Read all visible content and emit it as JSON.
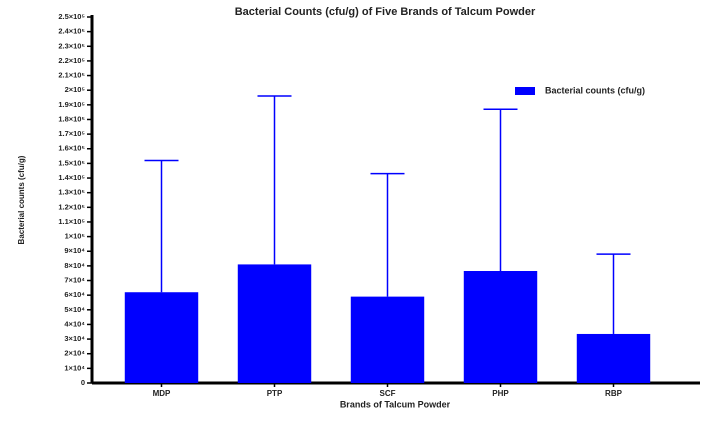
{
  "chart_data": {
    "type": "bar",
    "title": "Bacterial Counts (cfu/g) of Five Brands of Talcum Powder",
    "x_label": "Brands of  Talcum Powder",
    "y_label": "Bacterial counts (cfu/g)",
    "categories": [
      "MDP",
      "PTP",
      "SCF",
      "PHP",
      "RBP"
    ],
    "series": [
      {
        "name": "Bacterial counts (cfu/g)",
        "color": "#0000ff",
        "values": [
          62000,
          81000,
          59000,
          76500,
          33500
        ],
        "errors": [
          90000,
          115000,
          84000,
          110500,
          54500
        ]
      }
    ],
    "ylim": [
      0,
      250000
    ],
    "yticks": [
      0,
      {
        "value": 10000,
        "label": "1×10⁴"
      },
      {
        "value": 20000,
        "label": "2×10⁴"
      },
      {
        "value": 30000,
        "label": "3×10⁴"
      },
      {
        "value": 40000,
        "label": "4×10⁴"
      },
      {
        "value": 50000,
        "label": "5×10⁴"
      },
      {
        "value": 60000,
        "label": "6×10⁴"
      },
      {
        "value": 70000,
        "label": "7×10⁴"
      },
      {
        "value": 80000,
        "label": "8×10⁴"
      },
      {
        "value": 90000,
        "label": "9×10⁴"
      },
      {
        "value": 100000,
        "label": "1×10⁵"
      },
      {
        "value": 110000,
        "label": "1.1×10⁵"
      },
      {
        "value": 120000,
        "label": "1.2×10⁵"
      },
      {
        "value": 130000,
        "label": "1.3×10⁵"
      },
      {
        "value": 140000,
        "label": "1.4×10⁵"
      },
      {
        "value": 150000,
        "label": "1.5×10⁵"
      },
      {
        "value": 160000,
        "label": "1.6×10⁵"
      },
      {
        "value": 170000,
        "label": "1.7×10⁵"
      },
      {
        "value": 180000,
        "label": "1.8×10⁵"
      },
      {
        "value": 190000,
        "label": "1.9×10⁵"
      },
      {
        "value": 200000,
        "label": "2×10⁵"
      },
      {
        "value": 210000,
        "label": "2.1×10⁵"
      },
      {
        "value": 220000,
        "label": "2.2×10⁵"
      },
      {
        "value": 230000,
        "label": "2.3×10⁵"
      },
      {
        "value": 240000,
        "label": "2.4×10⁵"
      },
      {
        "value": 250000,
        "label": "2.5×10⁵"
      }
    ],
    "legend": "upper-right"
  }
}
